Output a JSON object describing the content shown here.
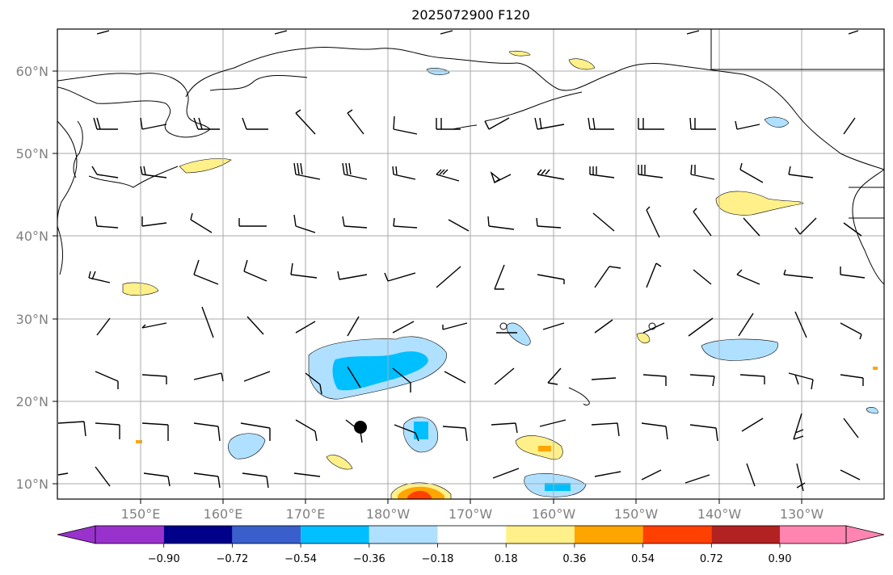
{
  "title": "2025072900 F120",
  "lat_labels": [
    "60°N",
    "50°N",
    "40°N",
    "30°N",
    "20°N",
    "10°N"
  ],
  "lon_labels": [
    "150°E",
    "160°E",
    "170°E",
    "180°W",
    "170°W",
    "160°W",
    "150°W",
    "140°W",
    "130°W"
  ],
  "colorbar": {
    "tick_labels": [
      "−0.90",
      "−0.72",
      "−0.54",
      "−0.36",
      "−0.18",
      "0.18",
      "0.36",
      "0.54",
      "0.72",
      "0.90"
    ],
    "colors": [
      "#9932cc",
      "#00008b",
      "#3a5fcd",
      "#00bfff",
      "#b0e0ff",
      "#ffffff",
      "#fff08a",
      "#ffa500",
      "#ff4000",
      "#b22222",
      "#ff85b0"
    ]
  },
  "fill_colors": {
    "light_blue": "#b0e0ff",
    "cyan": "#00bfff",
    "light_yellow": "#fff08a",
    "orange": "#ffa500",
    "red_orange": "#ff4000"
  },
  "markers": {
    "storm_symbol": "filled-circle",
    "open_circles": 2
  }
}
